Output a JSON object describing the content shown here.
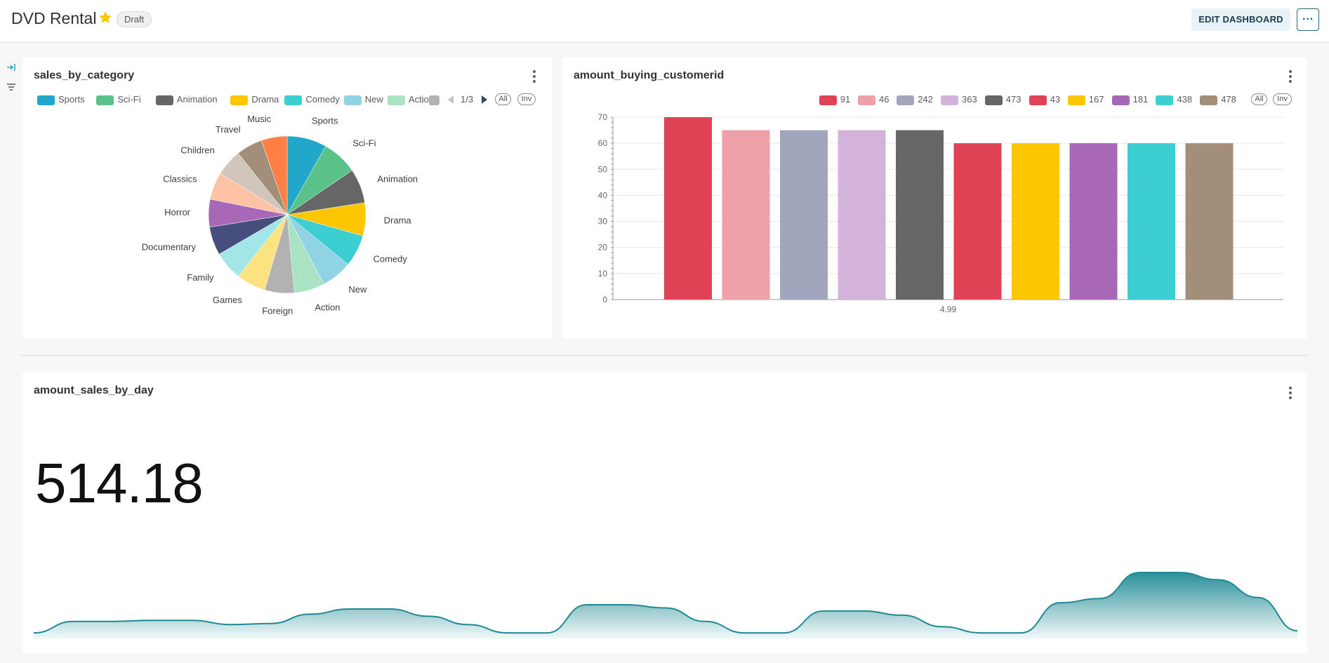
{
  "header": {
    "title": "DVD Rental",
    "badge": "Draft",
    "edit_label": "EDIT DASHBOARD",
    "more_label": "···",
    "star_color": "#fbc700"
  },
  "sidebar": {
    "icons": [
      "expand-icon",
      "filter-icon"
    ]
  },
  "cards": {
    "sales_by_category": {
      "title": "sales_by_category",
      "legend": [
        "Sports",
        "Sci-Fi",
        "Animation",
        "Drama",
        "Comedy",
        "New",
        "Action"
      ],
      "legend_page": "1/3",
      "all_label": "All",
      "inv_label": "Inv"
    },
    "amount_buying_customerid": {
      "title": "amount_buying_customerid",
      "all_label": "All",
      "inv_label": "Inv"
    },
    "amount_sales_by_day": {
      "title": "amount_sales_by_day",
      "big_number": "514.18"
    }
  },
  "chart_data": [
    {
      "type": "pie",
      "title": "sales_by_category",
      "categories": [
        "Sports",
        "Sci-Fi",
        "Animation",
        "Drama",
        "Comedy",
        "New",
        "Action",
        "Foreign",
        "Games",
        "Family",
        "Documentary",
        "Horror",
        "Classics",
        "Children",
        "Travel",
        "Music"
      ],
      "values": [
        7.7,
        6.9,
        6.7,
        6.4,
        6.2,
        6.0,
        5.9,
        5.8,
        5.7,
        5.6,
        5.5,
        5.4,
        5.3,
        5.2,
        5.1,
        5.0
      ],
      "colors": [
        "#20a7c9",
        "#5ac189",
        "#666666",
        "#fcc700",
        "#3cced0",
        "#8fd3e4",
        "#a9e3c3",
        "#b2b2b2",
        "#fde380",
        "#a3e6e7",
        "#454e7c",
        "#a868b7",
        "#ffc2a5",
        "#d1c6bc",
        "#a38f79",
        "#ff7f44"
      ],
      "legend_visible": [
        "Sports",
        "Sci-Fi",
        "Animation",
        "Drama",
        "Comedy",
        "New",
        "Action"
      ],
      "legend_placement": "top"
    },
    {
      "type": "bar",
      "title": "amount_buying_customerid",
      "categories": [
        "4.99"
      ],
      "series": [
        {
          "name": "91",
          "values": [
            70
          ],
          "color": "#e04355"
        },
        {
          "name": "46",
          "values": [
            65
          ],
          "color": "#efa1aa"
        },
        {
          "name": "242",
          "values": [
            65
          ],
          "color": "#a1a6bd"
        },
        {
          "name": "363",
          "values": [
            65
          ],
          "color": "#d3b3da"
        },
        {
          "name": "473",
          "values": [
            65
          ],
          "color": "#666666"
        },
        {
          "name": "43",
          "values": [
            60
          ],
          "color": "#e04355"
        },
        {
          "name": "167",
          "values": [
            60
          ],
          "color": "#fcc700"
        },
        {
          "name": "181",
          "values": [
            60
          ],
          "color": "#a868b7"
        },
        {
          "name": "438",
          "values": [
            60
          ],
          "color": "#3cced0"
        },
        {
          "name": "478",
          "values": [
            60
          ],
          "color": "#a38f79"
        }
      ],
      "ylim": [
        0,
        70
      ],
      "yticks": [
        0,
        10,
        20,
        30,
        40,
        50,
        60,
        70
      ],
      "grid": true,
      "legend_placement": "top-right"
    },
    {
      "type": "area",
      "title": "amount_sales_by_day",
      "big_number": "514.18",
      "color": "#1f8a95",
      "values": [
        6,
        17,
        17,
        18,
        18,
        14,
        15,
        24,
        29,
        29,
        22,
        14,
        6,
        6,
        33,
        33,
        30,
        17,
        6,
        6,
        27,
        27,
        23,
        12,
        6,
        6,
        35,
        39,
        64,
        64,
        57,
        40,
        8
      ]
    }
  ]
}
